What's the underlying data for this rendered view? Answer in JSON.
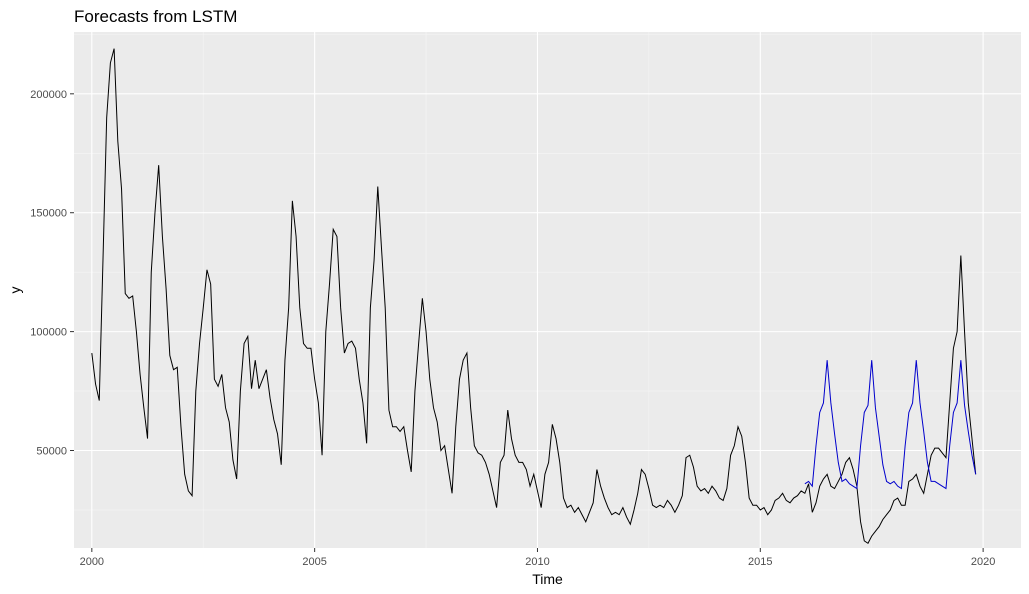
{
  "chart_data": {
    "type": "line",
    "title": "Forecasts from LSTM",
    "xlabel": "Time",
    "ylabel": "y",
    "xlim": [
      1999.6,
      2020.85
    ],
    "ylim": [
      9000,
      226000
    ],
    "x_ticks": [
      2000,
      2005,
      2010,
      2015,
      2020
    ],
    "x_tick_labels": [
      "2000",
      "2005",
      "2010",
      "2015",
      "2020"
    ],
    "y_ticks": [
      50000,
      100000,
      150000,
      200000
    ],
    "y_tick_labels": [
      "50000",
      "100000",
      "150000",
      "200000"
    ],
    "grid": true,
    "legend": "none",
    "colors": {
      "panel": "#ebebeb",
      "grid_major": "#ffffff",
      "grid_minor": "#f5f5f5",
      "actual": "#000000",
      "forecast": "#0000cc",
      "tick_text": "#4d4d4d"
    },
    "series": [
      {
        "key": "actual",
        "frequency": 12,
        "start": 2000,
        "values": [
          91000,
          78000,
          71000,
          130000,
          190000,
          213000,
          219000,
          180000,
          160000,
          116000,
          114000,
          115000,
          100000,
          82000,
          68000,
          55000,
          125000,
          150000,
          170000,
          140000,
          118000,
          90000,
          84000,
          85000,
          60000,
          40000,
          33000,
          31000,
          75000,
          95000,
          110000,
          126000,
          120000,
          80000,
          77000,
          82000,
          68000,
          62000,
          46000,
          38000,
          75000,
          95000,
          98000,
          76000,
          88000,
          76000,
          80000,
          84000,
          72000,
          63000,
          57000,
          44000,
          88000,
          110000,
          155000,
          140000,
          110000,
          95000,
          93000,
          93000,
          80000,
          70000,
          48000,
          100000,
          120000,
          143000,
          140000,
          110000,
          91000,
          95000,
          96000,
          93000,
          80000,
          70000,
          53000,
          110000,
          130000,
          161000,
          135000,
          110000,
          67000,
          60000,
          60000,
          58000,
          60000,
          50000,
          41000,
          75000,
          95000,
          114000,
          100000,
          80000,
          68000,
          62000,
          50000,
          52000,
          42000,
          32000,
          60000,
          80000,
          88000,
          91000,
          68000,
          52000,
          49000,
          48000,
          45000,
          40000,
          33000,
          26000,
          45000,
          48000,
          67000,
          55000,
          48000,
          45000,
          45000,
          42000,
          35000,
          40000,
          33000,
          26000,
          40000,
          45000,
          61000,
          55000,
          45000,
          30000,
          26000,
          27000,
          24000,
          26000,
          23000,
          20000,
          24000,
          28000,
          42000,
          35000,
          30000,
          26000,
          23000,
          24000,
          23000,
          26000,
          22000,
          19000,
          25000,
          32000,
          42000,
          40000,
          34000,
          27000,
          26000,
          27000,
          26000,
          29000,
          27000,
          24000,
          27000,
          31000,
          47000,
          48000,
          43000,
          35000,
          33000,
          34000,
          32000,
          35000,
          33000,
          30000,
          29000,
          34000,
          48000,
          52000,
          60000,
          56000,
          45000,
          30000,
          27000,
          27000,
          25000,
          26000,
          23000,
          25000,
          29000,
          30000,
          32000,
          29000,
          28000,
          30000,
          31000,
          33000,
          32000,
          36000,
          24000,
          28000,
          35000,
          38000,
          40000,
          35000,
          34000,
          37000,
          40000,
          45000,
          47000,
          42000,
          35000,
          20000,
          12000,
          11000,
          14000,
          16000,
          18000,
          21000,
          23000,
          25000,
          29000,
          30000,
          27000,
          27000,
          37000,
          38000,
          40000,
          35000,
          32000,
          40000,
          48000,
          51000,
          51000,
          49000,
          47000,
          70000,
          93000,
          100000,
          132000,
          100000,
          70000,
          55000,
          40000
        ]
      },
      {
        "key": "forecast",
        "frequency": 12,
        "start": 2016,
        "values": [
          36000,
          37000,
          35000,
          52000,
          66000,
          70000,
          88000,
          70000,
          57000,
          45000,
          37000,
          38000,
          36000,
          35000,
          34000,
          52000,
          66000,
          69000,
          88000,
          68000,
          56000,
          44000,
          37000,
          36000,
          37000,
          35000,
          34000,
          52000,
          66000,
          70000,
          88000,
          70000,
          58000,
          45000,
          37000,
          37000,
          36000,
          35000,
          34000,
          52000,
          66000,
          70000,
          88000,
          69000,
          58000,
          48000,
          40000
        ]
      }
    ]
  }
}
